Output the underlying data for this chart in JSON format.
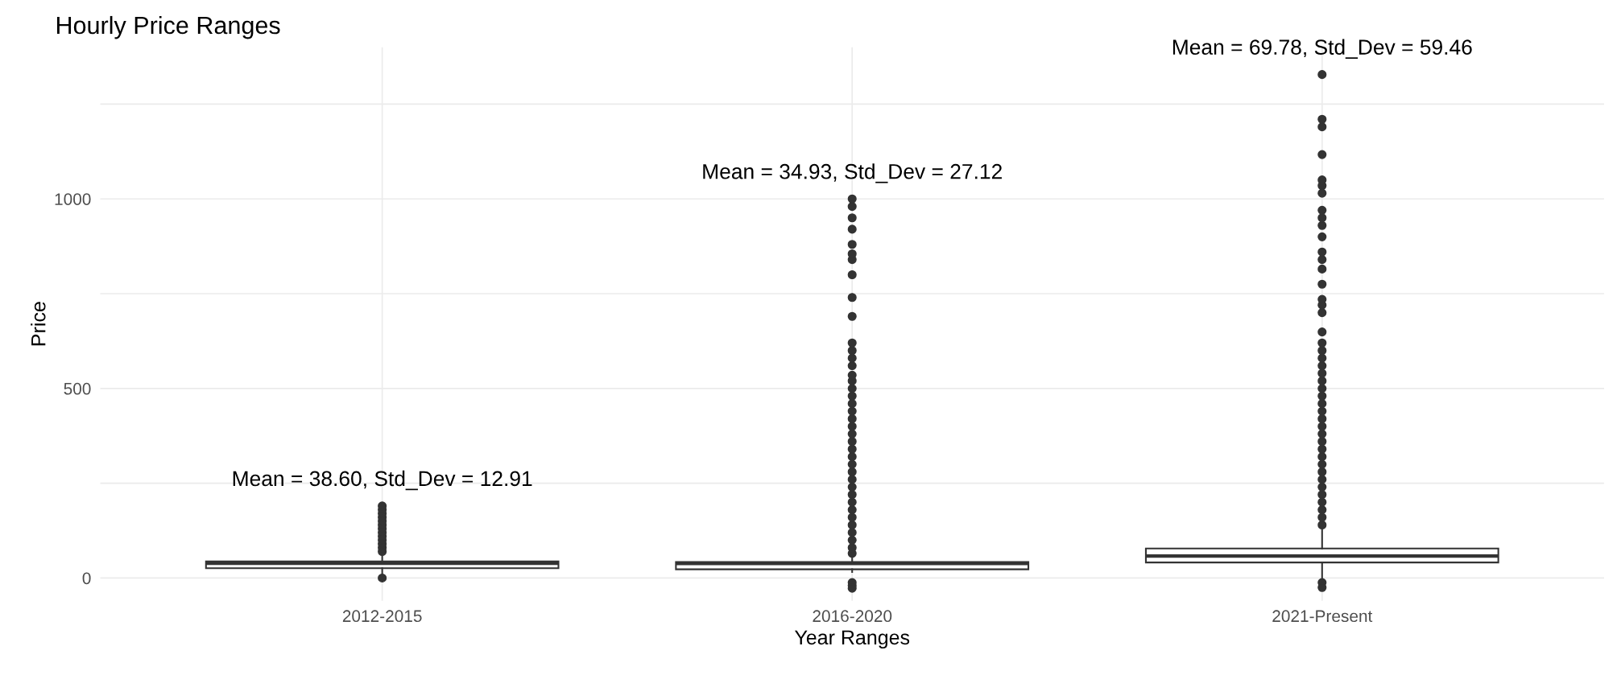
{
  "chart_data": {
    "type": "box",
    "title": "Hourly Price Ranges",
    "xlabel": "Year Ranges",
    "ylabel": "Price",
    "categories": [
      "2012-2015",
      "2016-2020",
      "2021-Present"
    ],
    "boxes": [
      {
        "low": 5,
        "q1": 26,
        "median": 39,
        "q3": 44,
        "high": 62,
        "outliers": [
          0,
          70,
          80,
          90,
          100,
          110,
          120,
          130,
          140,
          150,
          160,
          170,
          180,
          190
        ]
      },
      {
        "low": 16,
        "q1": 23,
        "median": 38,
        "q3": 42,
        "high": 58,
        "outliers": [
          -12,
          -20,
          -27,
          65,
          80,
          100,
          120,
          140,
          160,
          180,
          200,
          220,
          240,
          260,
          280,
          300,
          320,
          340,
          360,
          380,
          400,
          420,
          440,
          460,
          480,
          500,
          520,
          535,
          560,
          580,
          600,
          620,
          690,
          740,
          800,
          840,
          855,
          880,
          920,
          950,
          980,
          1000
        ]
      },
      {
        "low": -2,
        "q1": 41,
        "median": 58,
        "q3": 78,
        "high": 129,
        "outliers": [
          -12,
          -25,
          140,
          160,
          180,
          200,
          220,
          240,
          260,
          280,
          300,
          320,
          340,
          360,
          380,
          400,
          420,
          440,
          460,
          480,
          500,
          520,
          540,
          560,
          580,
          600,
          620,
          649,
          700,
          720,
          735,
          775,
          815,
          840,
          860,
          900,
          930,
          950,
          970,
          1015,
          1035,
          1050,
          1117,
          1190,
          1210,
          1328
        ]
      }
    ],
    "color": "#333333",
    "ylim": [
      -60,
      1400
    ],
    "yticks": [
      0,
      {
        "value": 250,
        "label": null
      },
      500,
      {
        "value": 750,
        "label": null
      },
      1000,
      {
        "value": 1250,
        "label": null
      }
    ],
    "grid": true,
    "annotations": [
      "Mean = 38.60, Std_Dev = 12.91",
      "Mean = 34.93, Std_Dev = 27.12",
      "Mean = 69.78, Std_Dev = 59.46"
    ]
  }
}
